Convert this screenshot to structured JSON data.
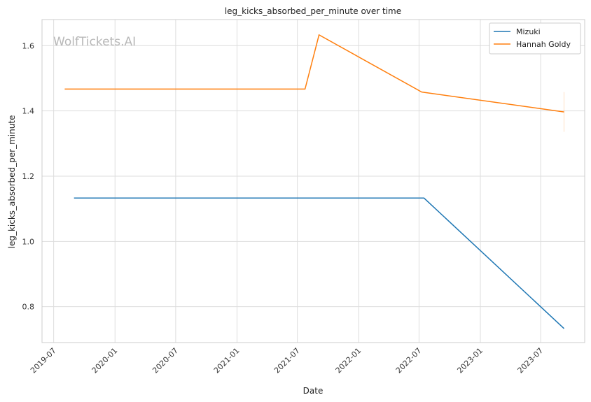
{
  "chart_data": {
    "type": "line",
    "title": "leg_kicks_absorbed_per_minute over time",
    "xlabel": "Date",
    "ylabel": "leg_kicks_absorbed_per_minute",
    "watermark": "WolfTickets.AI",
    "x_ticks": [
      "2019-07",
      "2020-01",
      "2020-07",
      "2021-01",
      "2021-07",
      "2022-01",
      "2022-07",
      "2023-01",
      "2023-07"
    ],
    "y_ticks": [
      0.8,
      1.0,
      1.2,
      1.4,
      1.6
    ],
    "xlim": [
      "2019-05-27",
      "2023-11-10"
    ],
    "ylim": [
      0.69,
      1.68
    ],
    "grid": true,
    "legend_position": "top-right",
    "series": [
      {
        "name": "Mizuki",
        "color": "#1f77b4",
        "points": [
          {
            "x": "2019-08-31",
            "y": 1.133
          },
          {
            "x": "2022-07-16",
            "y": 1.133
          },
          {
            "x": "2023-09-09",
            "y": 0.733
          }
        ]
      },
      {
        "name": "Hannah Goldy",
        "color": "#ff7f0e",
        "points": [
          {
            "x": "2019-08-03",
            "y": 1.467
          },
          {
            "x": "2021-07-24",
            "y": 1.467
          },
          {
            "x": "2021-09-04",
            "y": 1.633
          },
          {
            "x": "2022-07-09",
            "y": 1.458
          },
          {
            "x": "2023-09-09",
            "y": 1.397
          }
        ],
        "error_band_at_last_point": [
          1.336,
          1.458
        ]
      }
    ]
  }
}
